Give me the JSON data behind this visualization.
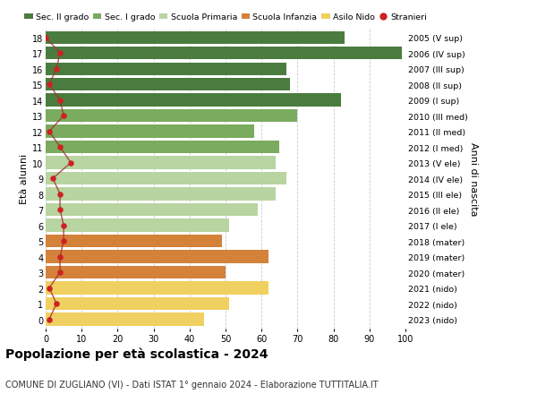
{
  "ages": [
    18,
    17,
    16,
    15,
    14,
    13,
    12,
    11,
    10,
    9,
    8,
    7,
    6,
    5,
    4,
    3,
    2,
    1,
    0
  ],
  "right_labels": [
    "2005 (V sup)",
    "2006 (IV sup)",
    "2007 (III sup)",
    "2008 (II sup)",
    "2009 (I sup)",
    "2010 (III med)",
    "2011 (II med)",
    "2012 (I med)",
    "2013 (V ele)",
    "2014 (IV ele)",
    "2015 (III ele)",
    "2016 (II ele)",
    "2017 (I ele)",
    "2018 (mater)",
    "2019 (mater)",
    "2020 (mater)",
    "2021 (nido)",
    "2022 (nido)",
    "2023 (nido)"
  ],
  "bar_values": [
    83,
    99,
    67,
    68,
    82,
    70,
    58,
    65,
    64,
    67,
    64,
    59,
    51,
    49,
    62,
    50,
    62,
    51,
    44
  ],
  "stranieri": [
    0,
    4,
    3,
    1,
    4,
    5,
    1,
    4,
    7,
    2,
    4,
    4,
    5,
    5,
    4,
    4,
    1,
    3,
    1
  ],
  "bar_colors": [
    "#4a7c3f",
    "#4a7c3f",
    "#4a7c3f",
    "#4a7c3f",
    "#4a7c3f",
    "#7aab5e",
    "#7aab5e",
    "#7aab5e",
    "#b8d4a0",
    "#b8d4a0",
    "#b8d4a0",
    "#b8d4a0",
    "#b8d4a0",
    "#d4813a",
    "#d4813a",
    "#d4813a",
    "#f0d060",
    "#f0d060",
    "#f0d060"
  ],
  "legend_labels": [
    "Sec. II grado",
    "Sec. I grado",
    "Scuola Primaria",
    "Scuola Infanzia",
    "Asilo Nido",
    "Stranieri"
  ],
  "legend_colors": [
    "#4a7c3f",
    "#7aab5e",
    "#b8d4a0",
    "#d4813a",
    "#f0d060",
    "#cc2222"
  ],
  "ylabel_left": "Età alunni",
  "ylabel_right": "Anni di nascita",
  "title": "Popolazione per età scolastica - 2024",
  "subtitle": "COMUNE DI ZUGLIANO (VI) - Dati ISTAT 1° gennaio 2024 - Elaborazione TUTTITALIA.IT",
  "xlim": [
    0,
    100
  ],
  "stranieri_color": "#cc2222",
  "stranieri_line_color": "#9e3333",
  "background_color": "#ffffff",
  "grid_color": "#cccccc"
}
